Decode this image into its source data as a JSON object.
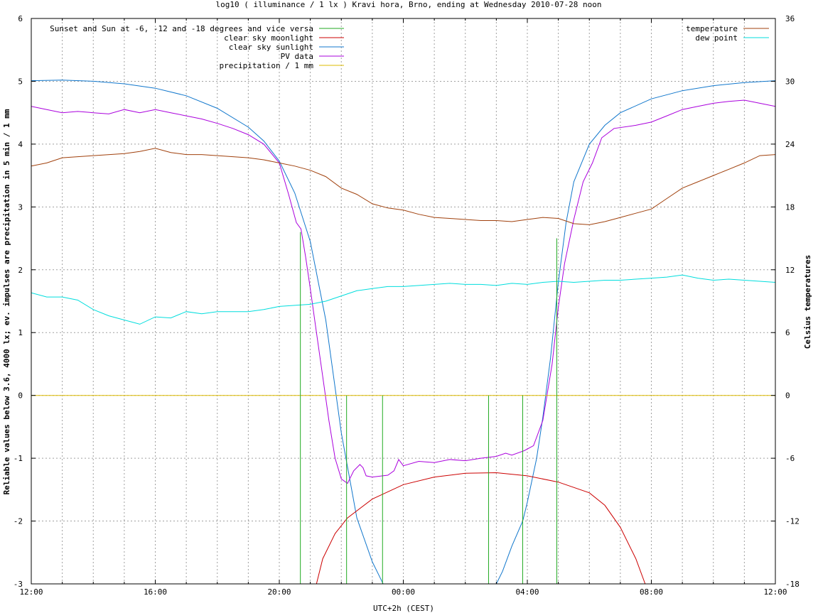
{
  "chart_data": {
    "type": "line",
    "title": "log10 ( illuminance / 1 lx ) Kravi hora, Brno, ending at Wednesday 2010-07-28 noon",
    "xlabel": "UTC+2h (CEST)",
    "ylabel": "Reliable values below 3.6, 4000 lx; ev. impulses are precipitation in 5 min / 1 mm",
    "y2label": "Celsius temperatures",
    "x_unit": "hours since 12:00",
    "xlim": [
      0,
      24
    ],
    "ylim": [
      -3,
      6
    ],
    "y2lim": [
      -18,
      36
    ],
    "x_ticks": [
      "12:00",
      "16:00",
      "20:00",
      "00:00",
      "04:00",
      "08:00",
      "12:00"
    ],
    "y_ticks": [
      "-3",
      "-2",
      "-1",
      "0",
      "1",
      "2",
      "3",
      "4",
      "5",
      "6"
    ],
    "y2_ticks": [
      "-18",
      "-12",
      "-6",
      "0",
      "6",
      "12",
      "18",
      "24",
      "30",
      "36"
    ],
    "grid": true,
    "legend_left": [
      "Sunset and Sun at -6, -12 and -18 degrees and vice versa",
      "clear sky moonlight",
      "clear sky sunlight",
      "PV data",
      "precipitation / 1 mm"
    ],
    "legend_right": [
      "temperature",
      "dew point"
    ],
    "legend_placement": "top-left and top-right",
    "colors": {
      "sun_markers": "#22aa22",
      "moonlight": "#cc0000",
      "sunlight": "#1177cc",
      "pv": "#aa00dd",
      "precipitation": "#ddbb00",
      "temperature": "#a0400c",
      "dew_point": "#00dddd"
    },
    "sun_marker_lines": [
      {
        "x": 8.68,
        "top": 2.6
      },
      {
        "x": 10.17,
        "top": 0
      },
      {
        "x": 11.33,
        "top": 0
      },
      {
        "x": 14.75,
        "top": 0
      },
      {
        "x": 15.85,
        "top": 0
      },
      {
        "x": 16.95,
        "top": 2.5
      }
    ],
    "series": [
      {
        "name": "clear sky sunlight",
        "axis": "left",
        "points": [
          [
            0,
            5.01
          ],
          [
            1,
            5.02
          ],
          [
            2,
            5.0
          ],
          [
            3,
            4.96
          ],
          [
            4,
            4.89
          ],
          [
            5,
            4.77
          ],
          [
            6,
            4.57
          ],
          [
            7,
            4.27
          ],
          [
            7.5,
            4.05
          ],
          [
            8,
            3.73
          ],
          [
            8.5,
            3.22
          ],
          [
            9,
            2.45
          ],
          [
            9.5,
            1.2
          ],
          [
            10,
            -0.6
          ],
          [
            10.5,
            -1.95
          ],
          [
            11,
            -2.65
          ],
          [
            11.2,
            -2.85
          ],
          [
            11.35,
            -3.0
          ]
        ]
      },
      {
        "name": "clear sky sunlight (morning)",
        "axis": "left",
        "points": [
          [
            15.0,
            -3.0
          ],
          [
            15.2,
            -2.8
          ],
          [
            15.5,
            -2.4
          ],
          [
            15.85,
            -2.0
          ],
          [
            16.0,
            -1.7
          ],
          [
            16.3,
            -1.0
          ],
          [
            16.5,
            -0.35
          ],
          [
            16.75,
            0.6
          ],
          [
            17.0,
            1.8
          ],
          [
            17.25,
            2.75
          ],
          [
            17.5,
            3.4
          ],
          [
            18,
            4.0
          ],
          [
            18.5,
            4.3
          ],
          [
            19,
            4.5
          ],
          [
            20,
            4.72
          ],
          [
            21,
            4.85
          ],
          [
            22,
            4.93
          ],
          [
            23,
            4.98
          ],
          [
            24,
            5.01
          ]
        ]
      },
      {
        "name": "clear sky moonlight",
        "axis": "left",
        "points": [
          [
            9.2,
            -3.0
          ],
          [
            9.4,
            -2.6
          ],
          [
            9.8,
            -2.2
          ],
          [
            10.2,
            -1.95
          ],
          [
            11,
            -1.65
          ],
          [
            12,
            -1.42
          ],
          [
            13,
            -1.3
          ],
          [
            14,
            -1.24
          ],
          [
            15,
            -1.23
          ],
          [
            16,
            -1.28
          ],
          [
            17,
            -1.38
          ],
          [
            18,
            -1.55
          ],
          [
            18.5,
            -1.75
          ],
          [
            19,
            -2.1
          ],
          [
            19.5,
            -2.6
          ],
          [
            19.8,
            -3.0
          ]
        ]
      },
      {
        "name": "PV data",
        "axis": "left",
        "points": [
          [
            0,
            4.6
          ],
          [
            0.5,
            4.55
          ],
          [
            1,
            4.5
          ],
          [
            1.5,
            4.52
          ],
          [
            2,
            4.5
          ],
          [
            2.5,
            4.48
          ],
          [
            3,
            4.55
          ],
          [
            3.5,
            4.5
          ],
          [
            4,
            4.55
          ],
          [
            4.5,
            4.5
          ],
          [
            5,
            4.45
          ],
          [
            5.5,
            4.4
          ],
          [
            6,
            4.33
          ],
          [
            6.5,
            4.25
          ],
          [
            7,
            4.15
          ],
          [
            7.5,
            4.0
          ],
          [
            8,
            3.7
          ],
          [
            8.3,
            3.2
          ],
          [
            8.55,
            2.75
          ],
          [
            8.7,
            2.65
          ],
          [
            8.85,
            2.2
          ],
          [
            9,
            1.7
          ],
          [
            9.2,
            1.0
          ],
          [
            9.4,
            0.3
          ],
          [
            9.6,
            -0.4
          ],
          [
            9.8,
            -1.0
          ],
          [
            10.0,
            -1.33
          ],
          [
            10.2,
            -1.4
          ],
          [
            10.4,
            -1.2
          ],
          [
            10.6,
            -1.1
          ],
          [
            10.7,
            -1.15
          ],
          [
            10.8,
            -1.28
          ],
          [
            11.0,
            -1.3
          ],
          [
            11.5,
            -1.27
          ],
          [
            11.7,
            -1.2
          ],
          [
            11.85,
            -1.02
          ],
          [
            12,
            -1.12
          ],
          [
            12.5,
            -1.05
          ],
          [
            13,
            -1.07
          ],
          [
            13.5,
            -1.02
          ],
          [
            14,
            -1.04
          ],
          [
            14.5,
            -1.0
          ],
          [
            15,
            -0.97
          ],
          [
            15.3,
            -0.92
          ],
          [
            15.5,
            -0.95
          ],
          [
            15.9,
            -0.88
          ],
          [
            16.2,
            -0.8
          ],
          [
            16.5,
            -0.4
          ],
          [
            16.8,
            0.5
          ],
          [
            17.0,
            1.4
          ],
          [
            17.2,
            2.1
          ],
          [
            17.5,
            2.8
          ],
          [
            17.8,
            3.4
          ],
          [
            18.1,
            3.7
          ],
          [
            18.4,
            4.1
          ],
          [
            18.8,
            4.25
          ],
          [
            19.5,
            4.3
          ],
          [
            20,
            4.35
          ],
          [
            20.5,
            4.45
          ],
          [
            21,
            4.55
          ],
          [
            21.5,
            4.6
          ],
          [
            22,
            4.65
          ],
          [
            22.5,
            4.68
          ],
          [
            23,
            4.7
          ],
          [
            23.5,
            4.65
          ],
          [
            24,
            4.6
          ]
        ]
      },
      {
        "name": "precipitation / 1 mm",
        "axis": "left",
        "points": [
          [
            0,
            0
          ],
          [
            24,
            0
          ]
        ]
      },
      {
        "name": "temperature",
        "axis": "right",
        "points": [
          [
            0,
            21.9
          ],
          [
            0.5,
            22.2
          ],
          [
            1,
            22.7
          ],
          [
            1.5,
            22.8
          ],
          [
            2,
            22.9
          ],
          [
            3,
            23.1
          ],
          [
            3.5,
            23.3
          ],
          [
            4,
            23.6
          ],
          [
            4.5,
            23.2
          ],
          [
            5,
            23.0
          ],
          [
            5.5,
            23.0
          ],
          [
            6,
            22.9
          ],
          [
            6.5,
            22.8
          ],
          [
            7,
            22.7
          ],
          [
            7.5,
            22.5
          ],
          [
            8,
            22.2
          ],
          [
            8.5,
            21.9
          ],
          [
            9,
            21.5
          ],
          [
            9.5,
            20.9
          ],
          [
            10,
            19.8
          ],
          [
            10.5,
            19.2
          ],
          [
            11,
            18.3
          ],
          [
            11.5,
            17.9
          ],
          [
            12,
            17.7
          ],
          [
            12.5,
            17.3
          ],
          [
            13,
            17.0
          ],
          [
            13.5,
            16.9
          ],
          [
            14,
            16.8
          ],
          [
            14.5,
            16.7
          ],
          [
            15,
            16.7
          ],
          [
            15.5,
            16.6
          ],
          [
            16,
            16.8
          ],
          [
            16.5,
            17.0
          ],
          [
            17,
            16.9
          ],
          [
            17.5,
            16.4
          ],
          [
            18,
            16.3
          ],
          [
            18.5,
            16.6
          ],
          [
            19,
            17.0
          ],
          [
            19.5,
            17.4
          ],
          [
            20,
            17.8
          ],
          [
            20.5,
            18.8
          ],
          [
            21,
            19.8
          ],
          [
            21.5,
            20.4
          ],
          [
            22,
            21.0
          ],
          [
            22.5,
            21.6
          ],
          [
            23,
            22.2
          ],
          [
            23.5,
            22.9
          ],
          [
            24,
            23.0
          ]
        ]
      },
      {
        "name": "dew point",
        "axis": "right",
        "points": [
          [
            0,
            9.8
          ],
          [
            0.5,
            9.4
          ],
          [
            1,
            9.4
          ],
          [
            1.5,
            9.1
          ],
          [
            2,
            8.2
          ],
          [
            2.5,
            7.6
          ],
          [
            3,
            7.2
          ],
          [
            3.5,
            6.8
          ],
          [
            4,
            7.5
          ],
          [
            4.5,
            7.4
          ],
          [
            5,
            8.0
          ],
          [
            5.5,
            7.8
          ],
          [
            6,
            8.0
          ],
          [
            7,
            8.0
          ],
          [
            7.5,
            8.2
          ],
          [
            8,
            8.5
          ],
          [
            8.5,
            8.6
          ],
          [
            9,
            8.7
          ],
          [
            9.5,
            9.0
          ],
          [
            10,
            9.5
          ],
          [
            10.5,
            10.0
          ],
          [
            11,
            10.2
          ],
          [
            11.5,
            10.4
          ],
          [
            12,
            10.4
          ],
          [
            13,
            10.6
          ],
          [
            13.5,
            10.7
          ],
          [
            14,
            10.6
          ],
          [
            14.5,
            10.6
          ],
          [
            15,
            10.5
          ],
          [
            15.5,
            10.7
          ],
          [
            16,
            10.6
          ],
          [
            16.5,
            10.8
          ],
          [
            17,
            10.9
          ],
          [
            17.5,
            10.8
          ],
          [
            18,
            10.9
          ],
          [
            18.5,
            11.0
          ],
          [
            19,
            11.0
          ],
          [
            19.5,
            11.1
          ],
          [
            20,
            11.2
          ],
          [
            20.5,
            11.3
          ],
          [
            21,
            11.5
          ],
          [
            21.5,
            11.2
          ],
          [
            22,
            11.0
          ],
          [
            22.5,
            11.1
          ],
          [
            23,
            11.0
          ],
          [
            23.5,
            10.9
          ],
          [
            24,
            10.8
          ]
        ]
      }
    ]
  }
}
